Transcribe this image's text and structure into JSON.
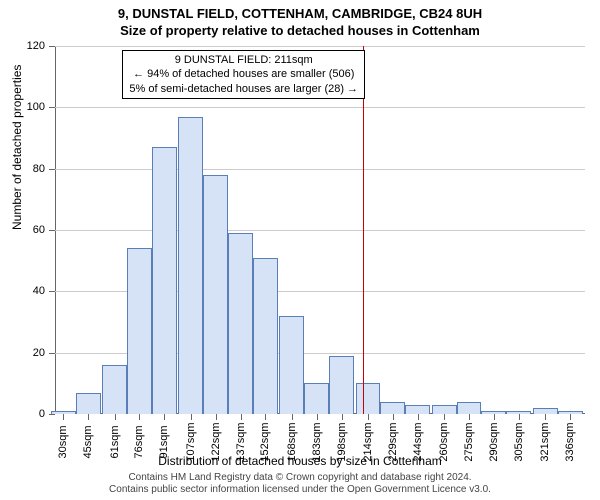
{
  "chart": {
    "type": "histogram",
    "title_line1": "9, DUNSTAL FIELD, COTTENHAM, CAMBRIDGE, CB24 8UH",
    "title_line2": "Size of property relative to detached houses in Cottenham",
    "title_fontsize": 13,
    "ylabel": "Number of detached properties",
    "xlabel": "Distribution of detached houses by size in Cottenham",
    "label_fontsize": 12,
    "tick_fontsize": 11,
    "background_color": "#ffffff",
    "grid_color": "#cccccc",
    "axis_color": "#666666",
    "bar_fill": "#d6e2f5",
    "bar_stroke": "#5a7fb8",
    "marker_color": "#cc0000",
    "marker_x": 211,
    "ylim": [
      0,
      120
    ],
    "ytick_step": 20,
    "yticks": [
      0,
      20,
      40,
      60,
      80,
      100,
      120
    ],
    "xlim": [
      25,
      345
    ],
    "xticks": [
      30,
      45,
      61,
      76,
      91,
      107,
      122,
      137,
      152,
      168,
      183,
      198,
      214,
      229,
      244,
      260,
      275,
      290,
      305,
      321,
      336
    ],
    "xtick_unit": "sqm",
    "bar_width_sqm": 15,
    "bars": [
      {
        "x": 30,
        "h": 1
      },
      {
        "x": 45,
        "h": 7
      },
      {
        "x": 61,
        "h": 16
      },
      {
        "x": 76,
        "h": 54
      },
      {
        "x": 91,
        "h": 87
      },
      {
        "x": 107,
        "h": 97
      },
      {
        "x": 122,
        "h": 78
      },
      {
        "x": 137,
        "h": 59
      },
      {
        "x": 152,
        "h": 51
      },
      {
        "x": 168,
        "h": 32
      },
      {
        "x": 183,
        "h": 10
      },
      {
        "x": 198,
        "h": 19
      },
      {
        "x": 214,
        "h": 10
      },
      {
        "x": 229,
        "h": 4
      },
      {
        "x": 244,
        "h": 3
      },
      {
        "x": 260,
        "h": 3
      },
      {
        "x": 275,
        "h": 4
      },
      {
        "x": 290,
        "h": 1
      },
      {
        "x": 305,
        "h": 1
      },
      {
        "x": 321,
        "h": 2
      },
      {
        "x": 336,
        "h": 1
      }
    ],
    "annotation": {
      "line1": "9 DUNSTAL FIELD: 211sqm",
      "line2": "← 94% of detached houses are smaller (506)",
      "line3": "5% of semi-detached houses are larger (28) →",
      "border_color": "#000000",
      "bg_color": "#ffffff",
      "fontsize": 11
    },
    "footer_line1": "Contains HM Land Registry data © Crown copyright and database right 2024.",
    "footer_line2": "Contains public sector information licensed under the Open Government Licence v3.0.",
    "footer_fontsize": 10
  }
}
